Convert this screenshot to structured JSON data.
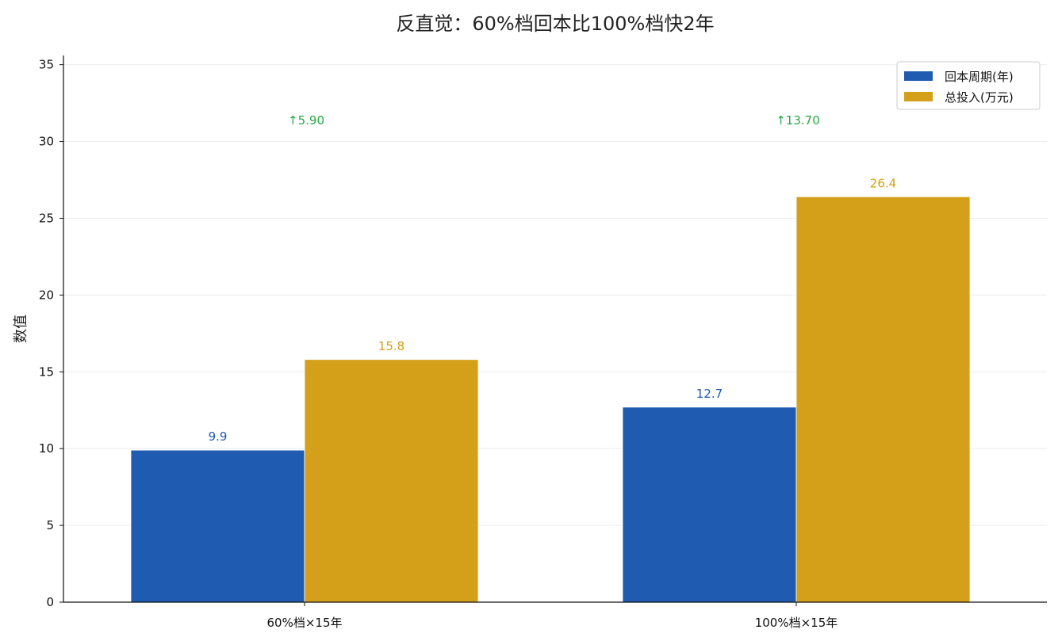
{
  "chart_data": {
    "type": "bar",
    "title": "反直觉：60%档回本比100%档快2年",
    "xlabel": "",
    "ylabel": "数值",
    "categories": [
      "60%档×15年",
      "100%档×15年"
    ],
    "series": [
      {
        "name": "回本周期(年)",
        "values": [
          9.9,
          12.7
        ],
        "color": "#1f5bb0",
        "labels": [
          "9.9",
          "12.7"
        ]
      },
      {
        "name": "总投入(万元)",
        "values": [
          15.8,
          26.4
        ],
        "color": "#d4a01a",
        "labels": [
          "15.8",
          "26.4"
        ]
      }
    ],
    "annotations": {
      "values": [
        5.9,
        13.7
      ],
      "labels": [
        "↑5.90",
        "↑13.70"
      ],
      "y": 31,
      "color": "#27a844"
    },
    "ylim": [
      0,
      35.6
    ],
    "yticks": [
      0,
      5,
      10,
      15,
      20,
      25,
      30,
      35
    ],
    "ytick_labels": [
      "0",
      "5",
      "10",
      "15",
      "20",
      "25",
      "30",
      "35"
    ],
    "grid": true,
    "legend_position": "top-right"
  }
}
